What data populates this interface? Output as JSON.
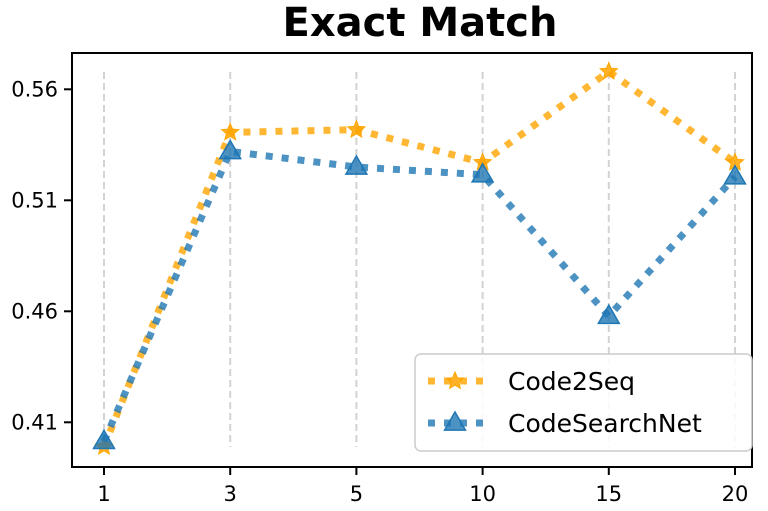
{
  "chart_data": {
    "type": "line",
    "title": "Exact Match",
    "xlabel": "",
    "ylabel": "",
    "categories": [
      "1",
      "3",
      "5",
      "10",
      "15",
      "20"
    ],
    "yticks": [
      "0.41",
      "0.46",
      "0.51",
      "0.56"
    ],
    "ylim": [
      0.389,
      0.578
    ],
    "grid": "vertical dashed",
    "legend": "bottom-right",
    "series": [
      {
        "name": "Code2Seq",
        "color": "#ffa500",
        "marker": "star",
        "linestyle": "dotted",
        "values": [
          0.399,
          0.5406,
          0.5418,
          0.527,
          0.568,
          0.527
        ]
      },
      {
        "name": "CodeSearchNet",
        "color": "#1f77b4",
        "marker": "triangle",
        "linestyle": "dotted",
        "values": [
          0.4014,
          0.532,
          0.525,
          0.5215,
          0.4578,
          0.5206
        ]
      }
    ]
  }
}
